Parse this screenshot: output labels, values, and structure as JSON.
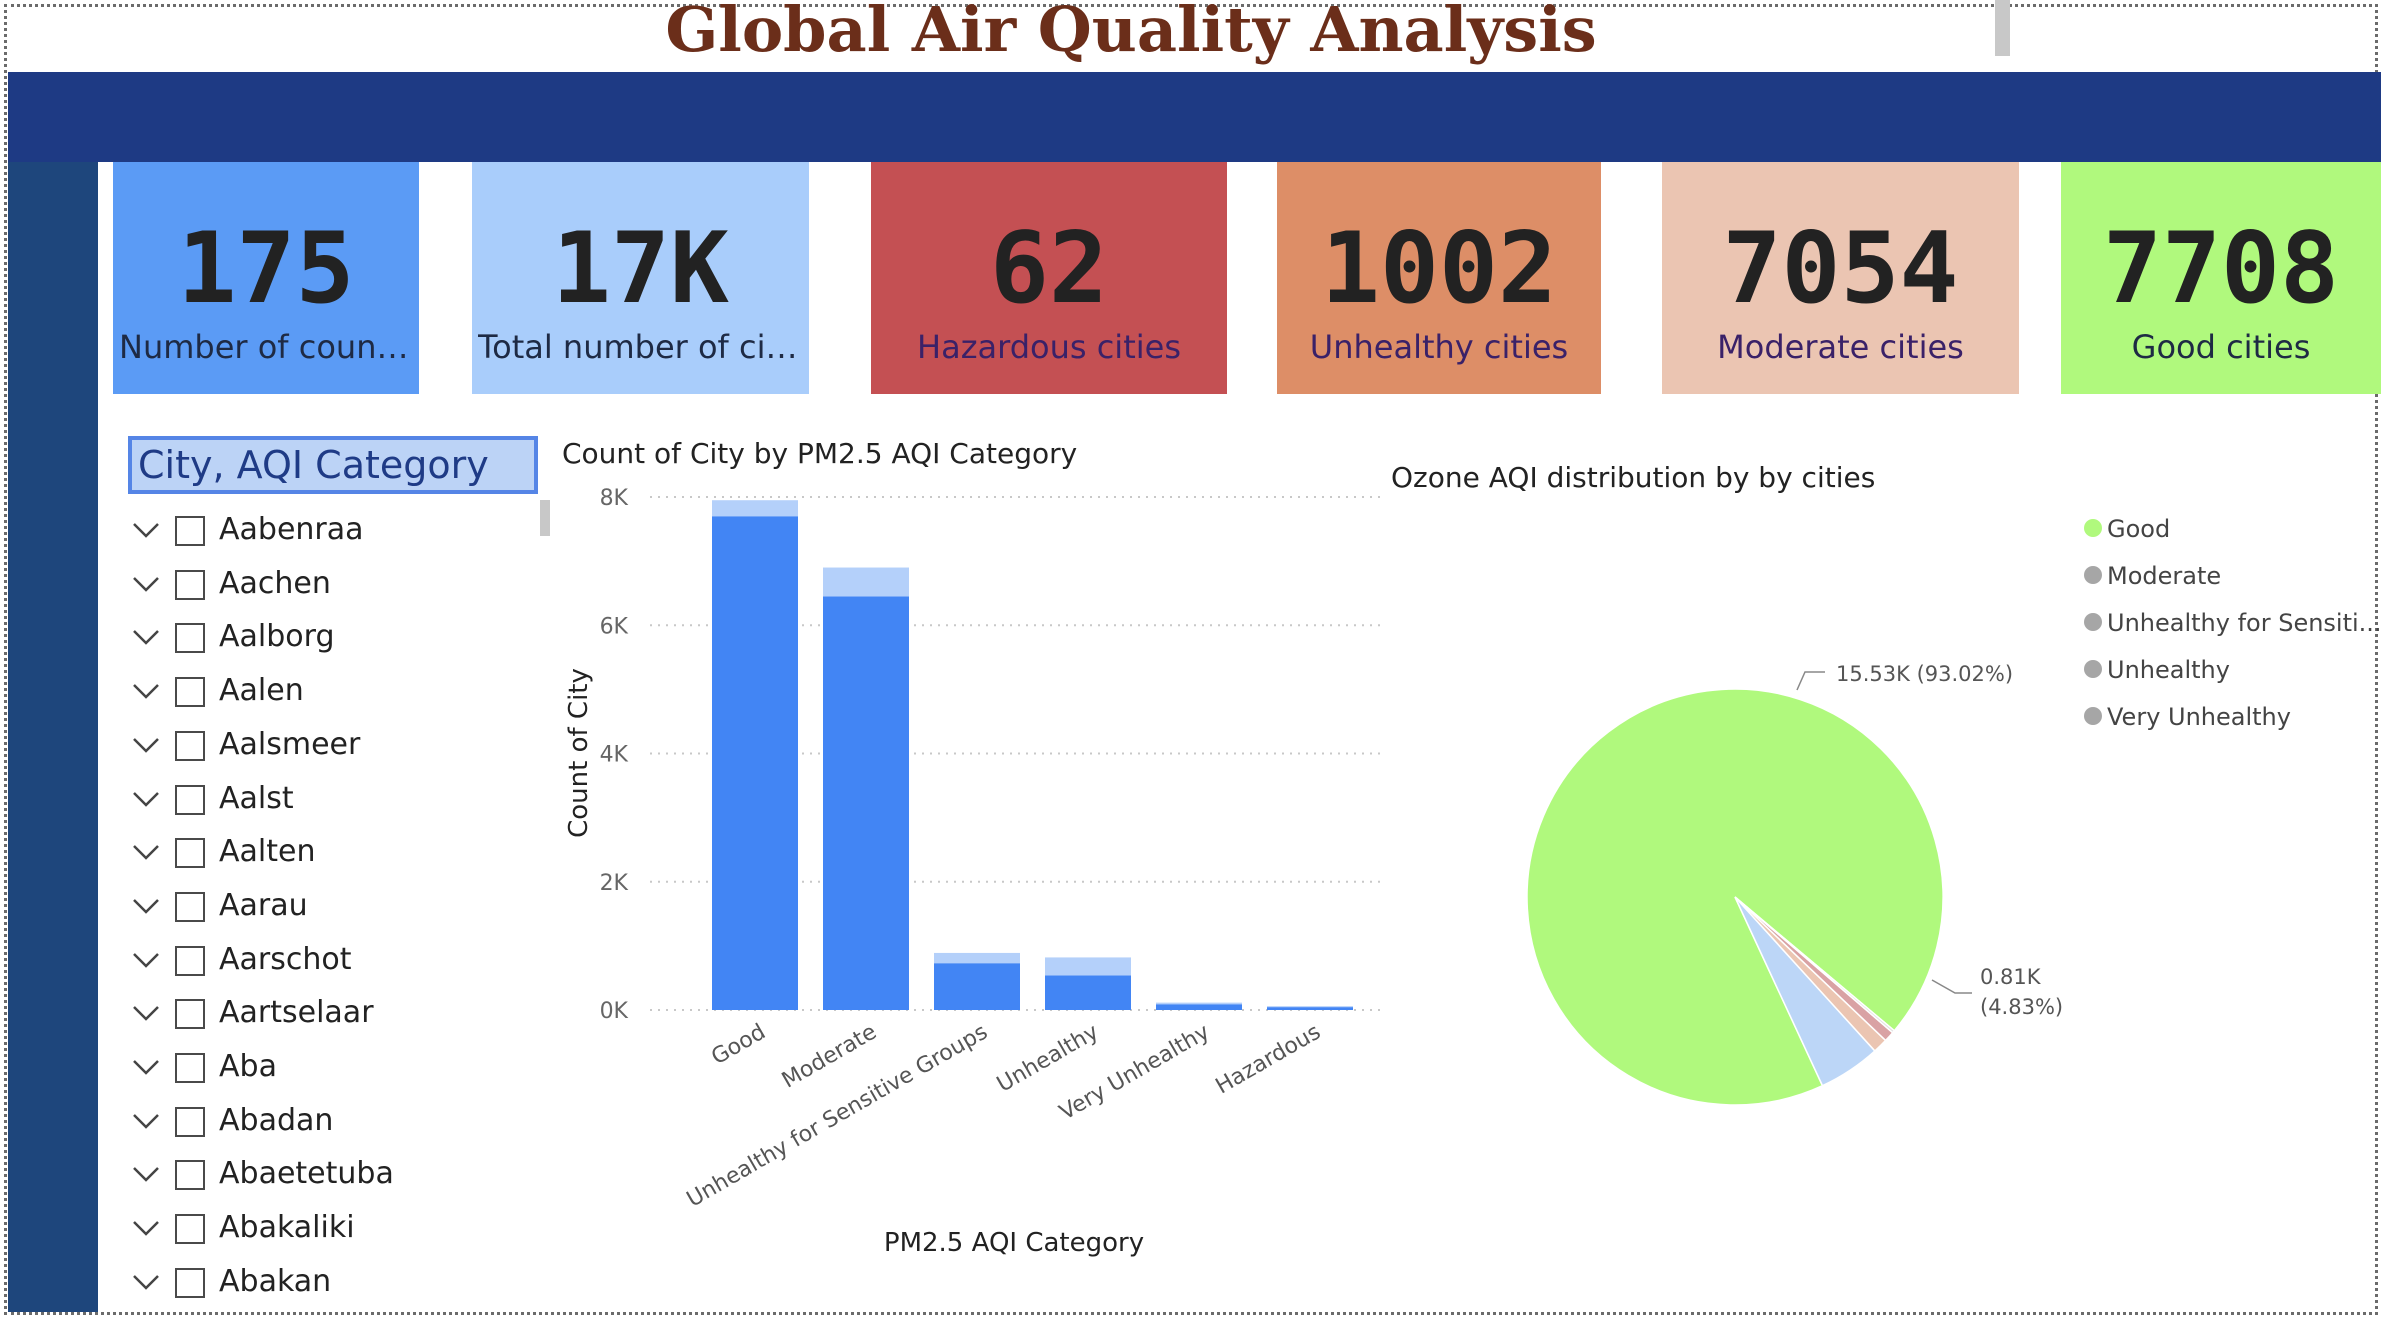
{
  "report": {
    "title": "Global Air Quality Analysis"
  },
  "kpis": [
    {
      "value": "175",
      "label": "Number of count...",
      "bg": "#5b9bf5",
      "label_color": "#1e2a44"
    },
    {
      "value": "17K",
      "label": "Total number of cities",
      "bg": "#a9cdfb",
      "label_color": "#1e2a44"
    },
    {
      "value": "62",
      "label": "Hazardous cities",
      "bg": "#c45053",
      "label_color": "#3a2168"
    },
    {
      "value": "1002",
      "label": "Unhealthy cities",
      "bg": "#dd8e67",
      "label_color": "#3a2168"
    },
    {
      "value": "7054",
      "label": "Moderate cities",
      "bg": "#ebc5b2",
      "label_color": "#3a2168"
    },
    {
      "value": "7708",
      "label": "Good cities",
      "bg": "#b0f97d",
      "label_color": "#1e2a44"
    }
  ],
  "slicer": {
    "header": "City, AQI Category",
    "items": [
      "Aabenraa",
      "Aachen",
      "Aalborg",
      "Aalen",
      "Aalsmeer",
      "Aalst",
      "Aalten",
      "Aarau",
      "Aarschot",
      "Aartselaar",
      "Aba",
      "Abadan",
      "Abaetetuba",
      "Abakaliki",
      "Abakan"
    ]
  },
  "bar_chart_title": "Count of City by PM2.5 AQI Category",
  "pie_chart_title": "Ozone AQI distribution by by cities",
  "chart_data": [
    {
      "type": "bar",
      "title": "Count of City by PM2.5 AQI Category",
      "xlabel": "PM2.5 AQI Category",
      "ylabel": "Count of City",
      "categories": [
        "Good",
        "Moderate",
        "Unhealthy for Sensitive Groups",
        "Unhealthy",
        "Very Unhealthy",
        "Hazardous"
      ],
      "ylim": [
        0,
        8000
      ],
      "yticks": [
        0,
        2000,
        4000,
        6000,
        8000
      ],
      "ytick_labels": [
        "0K",
        "2K",
        "4K",
        "6K",
        "8K"
      ],
      "stacked": true,
      "grid": true,
      "series": [
        {
          "color": "#4285f4",
          "values": [
            7700,
            6450,
            730,
            540,
            90,
            45
          ]
        },
        {
          "color": "#b4d0fa",
          "values": [
            250,
            450,
            160,
            280,
            25,
            15
          ]
        }
      ]
    },
    {
      "type": "pie",
      "title": "Ozone AQI distribution by by cities",
      "legend_position": "right",
      "slices": [
        {
          "label": "Good",
          "value": 93.02,
          "color": "#b0f97d",
          "data_label": "15.53K (93.02%)"
        },
        {
          "label": "Moderate",
          "value": 4.83,
          "color": "#bcd6f7",
          "data_label": "0.81K (4.83%)"
        },
        {
          "label": "Unhealthy for Sensiti...",
          "value": 1.15,
          "color": "#ebc5b2",
          "data_label": ""
        },
        {
          "label": "Unhealthy",
          "value": 0.8,
          "color": "#d9a2a4",
          "data_label": ""
        },
        {
          "label": "Very Unhealthy",
          "value": 0.2,
          "color": "#e0e0e0",
          "data_label": ""
        }
      ],
      "legend_marker_colors": [
        "#b0f97d",
        "#a6a6a6",
        "#a6a6a6",
        "#a6a6a6",
        "#a6a6a6"
      ]
    }
  ]
}
